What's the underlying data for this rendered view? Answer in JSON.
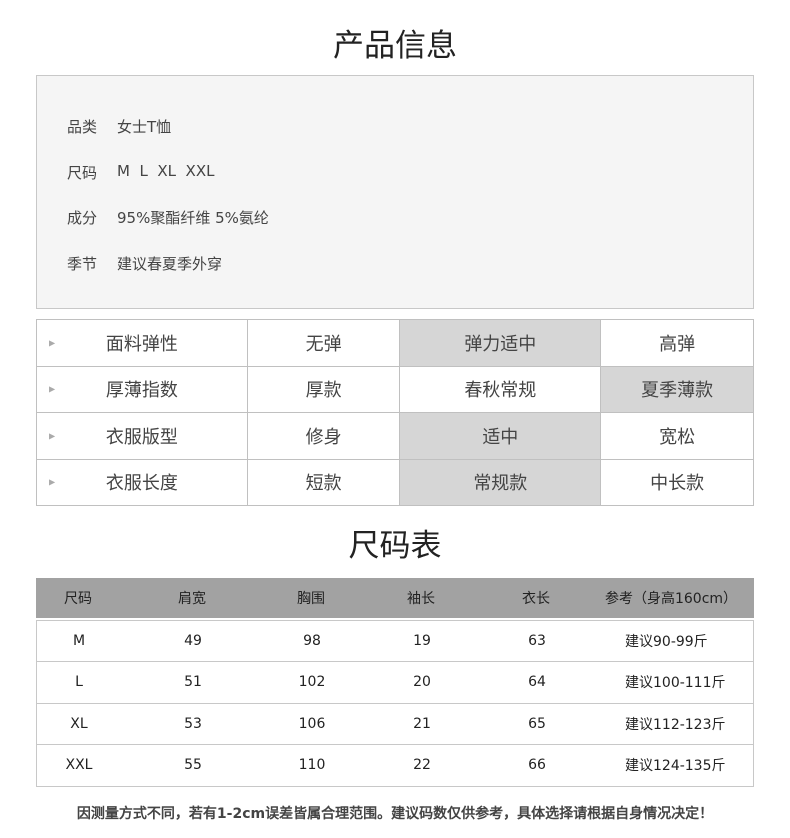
{
  "titles": {
    "product_info": "产品信息",
    "size_chart": "尺码表"
  },
  "info": [
    {
      "label": "品类",
      "value": "女士T恤"
    },
    {
      "label": "尺码",
      "value": "M  L  XL  XXL"
    },
    {
      "label": "成分",
      "value": "95%聚酯纤维 5%氨纶"
    },
    {
      "label": "季节",
      "value": "建议春夏季外穿"
    }
  ],
  "attributes": [
    {
      "name": "面料弹性",
      "options": [
        "无弹",
        "弹力适中",
        "高弹"
      ],
      "selected": 1
    },
    {
      "name": "厚薄指数",
      "options": [
        "厚款",
        "春秋常规",
        "夏季薄款"
      ],
      "selected": 2
    },
    {
      "name": "衣服版型",
      "options": [
        "修身",
        "适中",
        "宽松"
      ],
      "selected": 1
    },
    {
      "name": "衣服长度",
      "options": [
        "短款",
        "常规款",
        "中长款"
      ],
      "selected": 1
    }
  ],
  "size_table": {
    "headers": [
      "尺码",
      "肩宽",
      "胸围",
      "袖长",
      "衣长",
      "参考（身高160cm）"
    ],
    "rows": [
      [
        "M",
        "49",
        "98",
        "19",
        "63",
        "建议90-99斤"
      ],
      [
        "L",
        "51",
        "102",
        "20",
        "64",
        "建议100-111斤"
      ],
      [
        "XL",
        "53",
        "106",
        "21",
        "65",
        "建议112-123斤"
      ],
      [
        "XXL",
        "55",
        "110",
        "22",
        "66",
        "建议124-135斤"
      ]
    ]
  },
  "note": "因测量方式不同，若有1-2cm误差皆属合理范围。建议码数仅供参考，具体选择请根据自身情况决定！",
  "colors": {
    "highlight": "#d6d6d6",
    "header_bg": "#a2a2a2",
    "info_bg": "#f5f5f5"
  }
}
